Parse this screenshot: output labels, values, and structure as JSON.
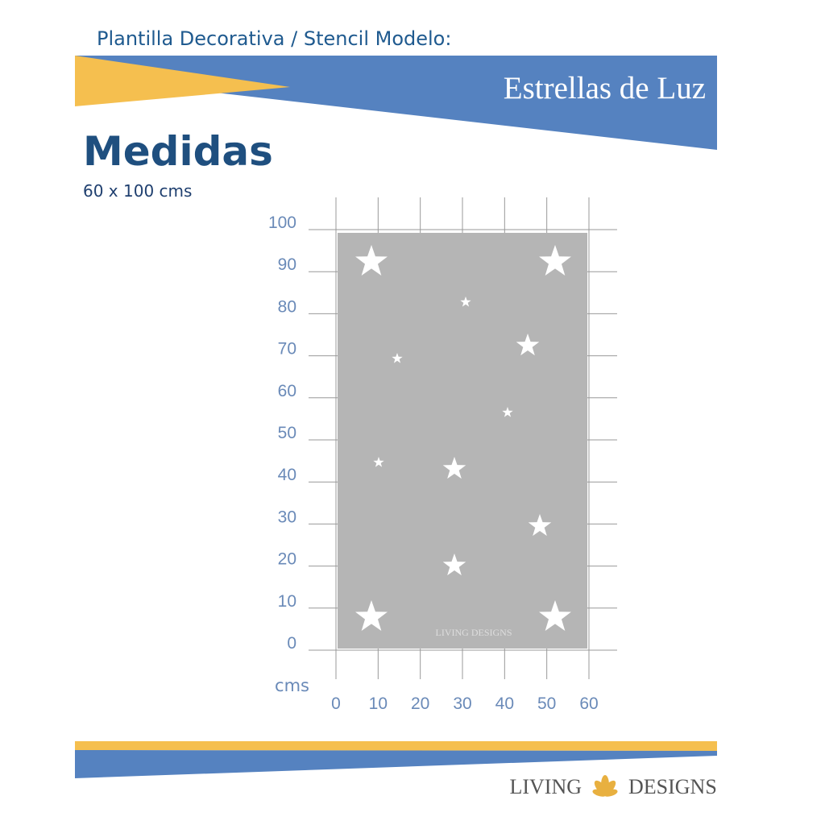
{
  "header": {
    "title": "Plantilla Decorativa / Stencil Modelo:",
    "stencil_name": "Estrellas de Luz"
  },
  "section": {
    "title": "Medidas",
    "size": "60 x 100 cms"
  },
  "grid": {
    "unit": "cms",
    "xticks": [
      0,
      10,
      20,
      30,
      40,
      50,
      60
    ],
    "yticks": [
      0,
      10,
      20,
      30,
      40,
      50,
      60,
      70,
      80,
      90,
      100
    ],
    "watermark": "LIVING DESIGNS"
  },
  "footer": {
    "brand_left": "LIVING",
    "brand_right": "DESIGNS"
  }
}
